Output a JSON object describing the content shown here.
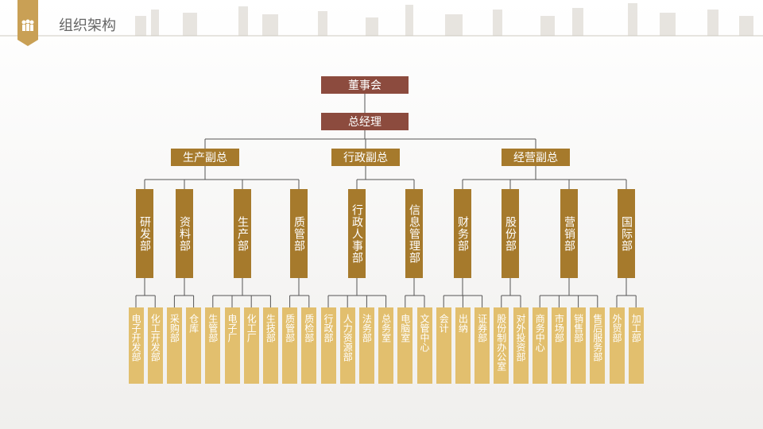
{
  "header": {
    "title": "组织架构"
  },
  "org": {
    "root": "董事会",
    "ceo": "总经理",
    "vps": [
      {
        "name": "生产副总",
        "departments": [
          {
            "name": "研发部",
            "units": [
              "电子开发部",
              "化工开发部"
            ]
          },
          {
            "name": "资料部",
            "units": [
              "采购部",
              "仓库"
            ]
          },
          {
            "name": "生产部",
            "units": [
              "生管部",
              "电子厂",
              "化工厂",
              "生技部"
            ]
          },
          {
            "name": "质管部",
            "units": [
              "质管部",
              "质检部"
            ]
          }
        ]
      },
      {
        "name": "行政副总",
        "departments": [
          {
            "name": "行政人事部",
            "units": [
              "行政部",
              "人力资源部",
              "法务部",
              "总务室"
            ]
          },
          {
            "name": "信息管理部",
            "units": [
              "电脑室",
              "文管中心"
            ]
          }
        ]
      },
      {
        "name": "经营副总",
        "departments": [
          {
            "name": "财务部",
            "units": [
              "会计",
              "出纳",
              "证券部"
            ]
          },
          {
            "name": "股份部",
            "units": [
              "股份制办公室",
              "对外投资部"
            ]
          },
          {
            "name": "营销部",
            "units": [
              "商务中心",
              "市场部",
              "销售部",
              "售后服务部"
            ]
          },
          {
            "name": "国际部",
            "units": [
              "外贸部",
              "加工部"
            ]
          }
        ]
      }
    ]
  }
}
